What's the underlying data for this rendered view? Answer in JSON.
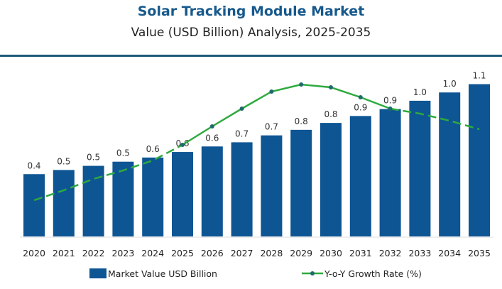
{
  "chart_data": {
    "type": "bar",
    "title": "Solar Tracking Module Market",
    "subtitle": "Value (USD Billion) Analysis, 2025-2035",
    "categories": [
      "2020",
      "2021",
      "2022",
      "2023",
      "2024",
      "2025",
      "2026",
      "2027",
      "2028",
      "2029",
      "2030",
      "2031",
      "2032",
      "2033",
      "2034",
      "2035"
    ],
    "series": [
      {
        "name": "Market Value USD Billion",
        "type": "bar",
        "color": "#0e5594",
        "values": [
          0.45,
          0.48,
          0.51,
          0.54,
          0.57,
          0.61,
          0.65,
          0.68,
          0.73,
          0.77,
          0.82,
          0.87,
          0.92,
          0.98,
          1.04,
          1.1
        ],
        "labels": [
          "0.4",
          "0.5",
          "0.5",
          "0.5",
          "0.6",
          "0.6",
          "0.6",
          "0.7",
          "0.7",
          "0.8",
          "0.8",
          "0.9",
          "0.9",
          "1.0",
          "1.0",
          "1.1"
        ]
      },
      {
        "name": "Y-o-Y Growth Rate (%)",
        "type": "line",
        "color": "#2eaa3e",
        "values": [
          2.55,
          3.25,
          4.05,
          4.65,
          5.35,
          6.45,
          7.75,
          9.0,
          10.2,
          10.7,
          10.5,
          9.8,
          9.0,
          8.65,
          8.15,
          7.55
        ],
        "dashed_before": "2025",
        "dashed_after": "2032"
      }
    ],
    "ylim": [
      0,
      1.2
    ],
    "grid": false,
    "legend": "bottom"
  }
}
